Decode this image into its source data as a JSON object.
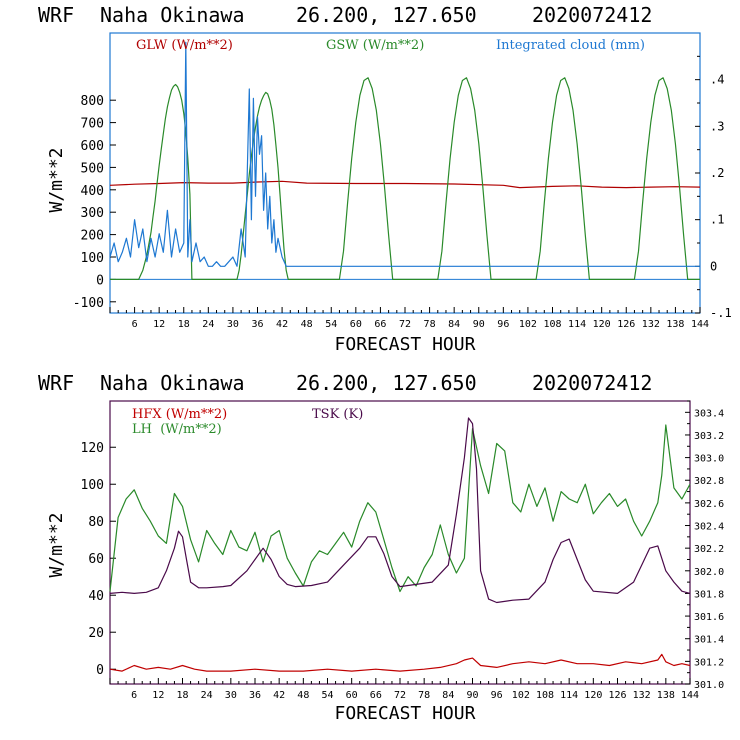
{
  "charts": {
    "top": {
      "title": {
        "model": "WRF",
        "location": "Naha Okinawa",
        "coords": "26.200, 127.650",
        "run": "2020072412"
      },
      "xlabel": "FORECAST HOUR",
      "ylabel": "W/m**2",
      "legend": {
        "glw": "GLW (W/m**2)",
        "gsw": "GSW (W/m**2)",
        "cloud": "Integrated cloud (mm)"
      }
    },
    "bottom": {
      "title": {
        "model": "WRF",
        "location": "Naha Okinawa",
        "coords": "26.200, 127.650",
        "run": "2020072412"
      },
      "xlabel": "FORECAST HOUR",
      "ylabel": "W/m**2",
      "legend": {
        "hfx": "HFX (W/m**2)",
        "lh": "LH  (W/m**2)",
        "tsk": "TSK (K)"
      }
    }
  },
  "colors": {
    "glw": "#b00000",
    "gsw": "#2a8a2a",
    "cloud": "#1e78d2",
    "hfx": "#c00000",
    "lh": "#2a8a2a",
    "tsk": "#4a0a4a",
    "frame_top": "#1e78d2",
    "frame_bottom": "#4a0a4a"
  },
  "chart_data": [
    {
      "type": "line",
      "x_ticks": [
        6,
        12,
        18,
        24,
        30,
        36,
        42,
        48,
        54,
        60,
        66,
        72,
        78,
        84,
        90,
        96,
        102,
        108,
        114,
        120,
        126,
        132,
        138,
        144
      ],
      "xlim": [
        0,
        144
      ],
      "ylim": [
        -150,
        1100
      ],
      "y_ticks": [
        -100,
        0,
        100,
        200,
        300,
        400,
        500,
        600,
        700,
        800
      ],
      "y2lim": [
        -0.1,
        0.5
      ],
      "y2_ticks": [
        -0.1,
        0,
        0.1,
        0.2,
        0.3,
        0.4
      ],
      "y2_tick_labels": [
        "-.1",
        "0",
        ".1",
        ".2",
        ".3",
        ".4"
      ],
      "series": [
        {
          "key": "glw",
          "axis": "left",
          "x": [
            0,
            6,
            12,
            18,
            24,
            30,
            36,
            42,
            48,
            60,
            72,
            84,
            96,
            100,
            108,
            114,
            120,
            126,
            132,
            138,
            144
          ],
          "y": [
            420,
            425,
            428,
            432,
            430,
            430,
            435,
            438,
            430,
            428,
            428,
            426,
            420,
            410,
            415,
            418,
            412,
            410,
            412,
            414,
            412
          ]
        },
        {
          "key": "gsw",
          "axis": "left",
          "x": [
            0,
            7,
            8,
            9,
            10,
            10.5,
            11,
            11.5,
            12,
            12.5,
            13,
            13.5,
            14,
            14.5,
            15,
            15.5,
            16,
            16.5,
            17,
            17.5,
            18,
            18.5,
            19,
            19.5,
            20,
            31,
            31.5,
            32,
            32.5,
            33,
            33.5,
            34,
            34.5,
            35,
            35.5,
            36,
            36.5,
            37,
            37.5,
            38,
            38.5,
            39,
            39.5,
            40,
            40.5,
            41,
            41.5,
            42,
            42.5,
            43,
            43.5,
            44,
            44.5,
            45,
            56,
            57,
            58,
            59,
            60,
            61,
            62,
            63,
            64,
            65,
            66,
            67,
            68,
            69,
            80,
            81,
            82,
            83,
            84,
            85,
            86,
            87,
            88,
            89,
            90,
            91,
            92,
            93,
            104,
            105,
            106,
            107,
            108,
            109,
            110,
            111,
            112,
            113,
            114,
            115,
            116,
            117,
            128,
            129,
            130,
            131,
            132,
            133,
            134,
            135,
            136,
            137,
            138,
            139,
            140,
            141,
            144
          ],
          "y": [
            0,
            0,
            40,
            110,
            210,
            280,
            350,
            430,
            510,
            580,
            650,
            715,
            770,
            810,
            845,
            862,
            870,
            860,
            835,
            800,
            740,
            660,
            540,
            380,
            0,
            0,
            40,
            110,
            200,
            290,
            380,
            470,
            550,
            620,
            680,
            730,
            770,
            800,
            820,
            835,
            828,
            800,
            760,
            690,
            600,
            500,
            380,
            250,
            130,
            40,
            0,
            0,
            0,
            0,
            0,
            126,
            342,
            540,
            702,
            822,
            888,
            900,
            852,
            756,
            606,
            414,
            198,
            0,
            0,
            126,
            342,
            540,
            702,
            822,
            888,
            900,
            852,
            756,
            606,
            414,
            198,
            0,
            0,
            126,
            342,
            540,
            702,
            822,
            888,
            900,
            852,
            756,
            606,
            414,
            198,
            0,
            0,
            126,
            342,
            540,
            702,
            822,
            888,
            900,
            852,
            756,
            606,
            414,
            198,
            0,
            0
          ]
        },
        {
          "key": "cloud",
          "axis": "right",
          "x": [
            0,
            1,
            2,
            3,
            4,
            5,
            6,
            7,
            8,
            9,
            10,
            11,
            12,
            13,
            14,
            15,
            16,
            17,
            18,
            18.5,
            19,
            19.5,
            20,
            21,
            22,
            23,
            24,
            25,
            26,
            27,
            28,
            29,
            30,
            31,
            32,
            33,
            34,
            34.5,
            35,
            35.5,
            36,
            36.5,
            37,
            37.5,
            38,
            38.5,
            39,
            39.5,
            40,
            40.5,
            41,
            42,
            43,
            144
          ],
          "y": [
            0.02,
            0.05,
            0.01,
            0.03,
            0.06,
            0.02,
            0.1,
            0.04,
            0.08,
            0.01,
            0.06,
            0.02,
            0.07,
            0.03,
            0.12,
            0.02,
            0.08,
            0.03,
            0.05,
            0.48,
            0.02,
            0.1,
            0.01,
            0.05,
            0.01,
            0.02,
            0.0,
            0.0,
            0.01,
            0.0,
            0.0,
            0.01,
            0.02,
            0.0,
            0.08,
            0.02,
            0.38,
            0.1,
            0.36,
            0.15,
            0.32,
            0.24,
            0.28,
            0.12,
            0.2,
            0.08,
            0.15,
            0.05,
            0.1,
            0.03,
            0.06,
            0.02,
            0.0,
            0.0
          ]
        }
      ]
    },
    {
      "type": "line",
      "x_ticks": [
        6,
        12,
        18,
        24,
        30,
        36,
        42,
        48,
        54,
        60,
        66,
        72,
        78,
        84,
        90,
        96,
        102,
        108,
        114,
        120,
        126,
        132,
        138,
        144
      ],
      "xlim": [
        0,
        144
      ],
      "ylim": [
        -8,
        145
      ],
      "y_ticks": [
        0,
        20,
        40,
        60,
        80,
        100,
        120
      ],
      "y2lim": [
        301.0,
        303.5
      ],
      "y2_ticks": [
        301.0,
        301.2,
        301.4,
        301.6,
        301.8,
        302.0,
        302.2,
        302.4,
        302.6,
        302.8,
        303.0,
        303.2,
        303.4
      ],
      "y2_tick_labels": [
        "301.0",
        "301.2",
        "301.4",
        "301.6",
        "301.8",
        "302.0",
        "302.2",
        "302.4",
        "302.6",
        "302.8",
        "303.0",
        "303.2",
        "303.4"
      ],
      "series": [
        {
          "key": "hfx",
          "axis": "left",
          "x": [
            0,
            3,
            6,
            9,
            12,
            15,
            18,
            21,
            24,
            30,
            36,
            42,
            48,
            54,
            60,
            66,
            72,
            78,
            82,
            86,
            88,
            90,
            92,
            96,
            100,
            104,
            108,
            112,
            116,
            120,
            124,
            128,
            132,
            136,
            137,
            138,
            140,
            142,
            144
          ],
          "y": [
            0,
            -1,
            2,
            0,
            1,
            0,
            2,
            0,
            -1,
            -1,
            0,
            -1,
            -1,
            0,
            -1,
            0,
            -1,
            0,
            1,
            3,
            5,
            6,
            2,
            1,
            3,
            4,
            3,
            5,
            3,
            3,
            2,
            4,
            3,
            5,
            8,
            4,
            2,
            3,
            2
          ]
        },
        {
          "key": "lh",
          "axis": "left",
          "x": [
            0,
            2,
            4,
            6,
            8,
            10,
            12,
            14,
            16,
            18,
            20,
            22,
            24,
            26,
            28,
            30,
            32,
            34,
            36,
            38,
            40,
            42,
            44,
            46,
            48,
            50,
            52,
            54,
            56,
            58,
            60,
            62,
            64,
            66,
            68,
            70,
            72,
            74,
            76,
            78,
            80,
            82,
            84,
            86,
            88,
            90,
            92,
            94,
            96,
            98,
            100,
            102,
            104,
            106,
            108,
            110,
            112,
            114,
            116,
            118,
            120,
            122,
            124,
            126,
            128,
            130,
            132,
            134,
            136,
            137,
            138,
            140,
            142,
            144
          ],
          "y": [
            42,
            82,
            92,
            97,
            87,
            80,
            72,
            68,
            95,
            88,
            70,
            58,
            75,
            68,
            62,
            75,
            66,
            64,
            74,
            58,
            72,
            75,
            60,
            52,
            45,
            58,
            64,
            62,
            68,
            74,
            66,
            80,
            90,
            85,
            70,
            55,
            42,
            50,
            45,
            55,
            62,
            78,
            62,
            52,
            60,
            130,
            110,
            95,
            122,
            118,
            90,
            85,
            100,
            88,
            98,
            80,
            96,
            92,
            90,
            100,
            84,
            90,
            95,
            88,
            92,
            80,
            72,
            80,
            90,
            105,
            132,
            98,
            92,
            100
          ]
        },
        {
          "key": "tsk",
          "axis": "right",
          "x": [
            0,
            3,
            6,
            9,
            12,
            14,
            16,
            17,
            18,
            19,
            20,
            22,
            24,
            28,
            30,
            34,
            36,
            38,
            40,
            42,
            44,
            46,
            50,
            54,
            58,
            62,
            64,
            66,
            68,
            70,
            72,
            76,
            80,
            84,
            86,
            88,
            89,
            90,
            91,
            92,
            94,
            96,
            100,
            104,
            108,
            110,
            112,
            114,
            116,
            118,
            120,
            126,
            130,
            132,
            134,
            136,
            138,
            140,
            142,
            144
          ],
          "y": [
            301.8,
            301.81,
            301.8,
            301.81,
            301.85,
            302.0,
            302.2,
            302.35,
            302.3,
            302.1,
            301.9,
            301.85,
            301.85,
            301.86,
            301.87,
            302.0,
            302.1,
            302.2,
            302.1,
            301.95,
            301.88,
            301.86,
            301.87,
            301.9,
            302.05,
            302.2,
            302.3,
            302.3,
            302.15,
            301.95,
            301.86,
            301.88,
            301.9,
            302.05,
            302.5,
            303.0,
            303.35,
            303.3,
            302.9,
            302.0,
            301.75,
            301.72,
            301.74,
            301.75,
            301.9,
            302.1,
            302.25,
            302.28,
            302.1,
            301.92,
            301.82,
            301.8,
            301.9,
            302.05,
            302.2,
            302.22,
            302.0,
            301.9,
            301.82,
            301.8
          ]
        }
      ]
    }
  ]
}
